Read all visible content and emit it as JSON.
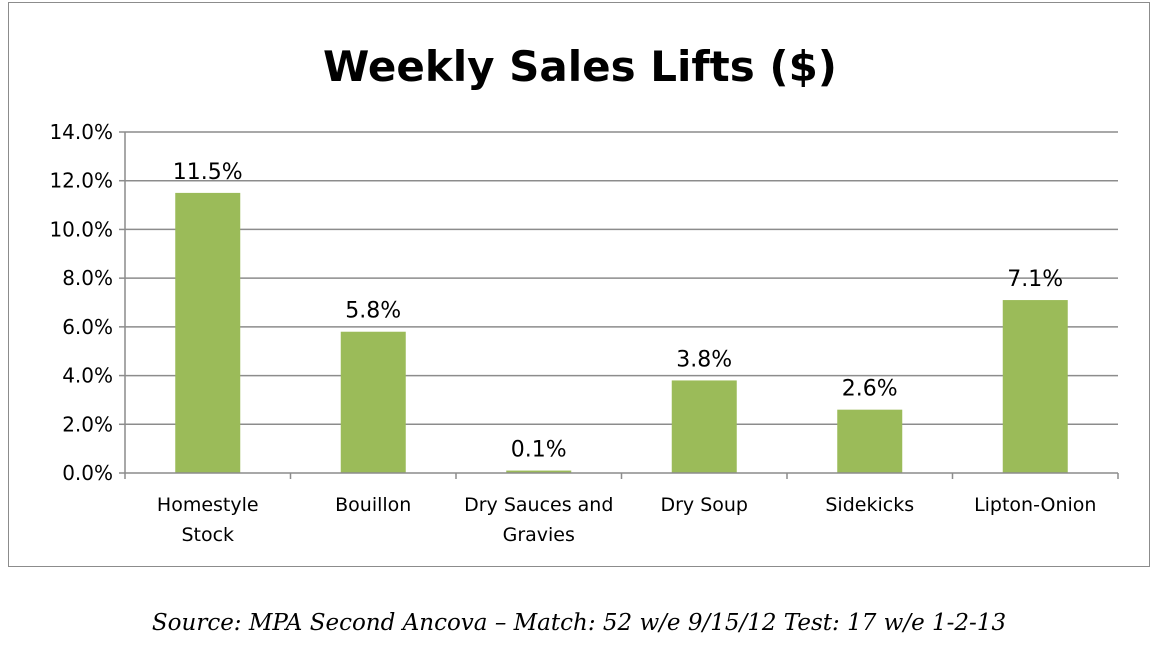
{
  "chart_data": {
    "type": "bar",
    "title": "Weekly Sales Lifts ($)",
    "xlabel": "",
    "ylabel": "",
    "categories": [
      "Homestyle Stock",
      "Bouillon",
      "Dry Sauces and Gravies",
      "Dry Soup",
      "Sidekicks",
      "Lipton-Onion"
    ],
    "category_lines": [
      [
        "Homestyle",
        "Stock"
      ],
      [
        "Bouillon"
      ],
      [
        "Dry Sauces and",
        "Gravies"
      ],
      [
        "Dry Soup"
      ],
      [
        "Sidekicks"
      ],
      [
        "Lipton-Onion"
      ]
    ],
    "values": [
      11.5,
      5.8,
      0.1,
      3.8,
      2.6,
      7.1
    ],
    "data_labels": [
      "11.5%",
      "5.8%",
      "0.1%",
      "3.8%",
      "2.6%",
      "7.1%"
    ],
    "ylim": [
      0,
      14
    ],
    "yticks": [
      0,
      2,
      4,
      6,
      8,
      10,
      12,
      14
    ],
    "ytick_labels": [
      "0.0%",
      "2.0%",
      "4.0%",
      "6.0%",
      "8.0%",
      "10.0%",
      "12.0%",
      "14.0%"
    ],
    "grid": true,
    "legend": "none",
    "bar_color": "#9bbb59",
    "grid_color": "#8c8c8c"
  },
  "source_note": "Source: MPA Second Ancova – Match: 52 w/e 9/15/12 Test: 17 w/e 1-2-13"
}
